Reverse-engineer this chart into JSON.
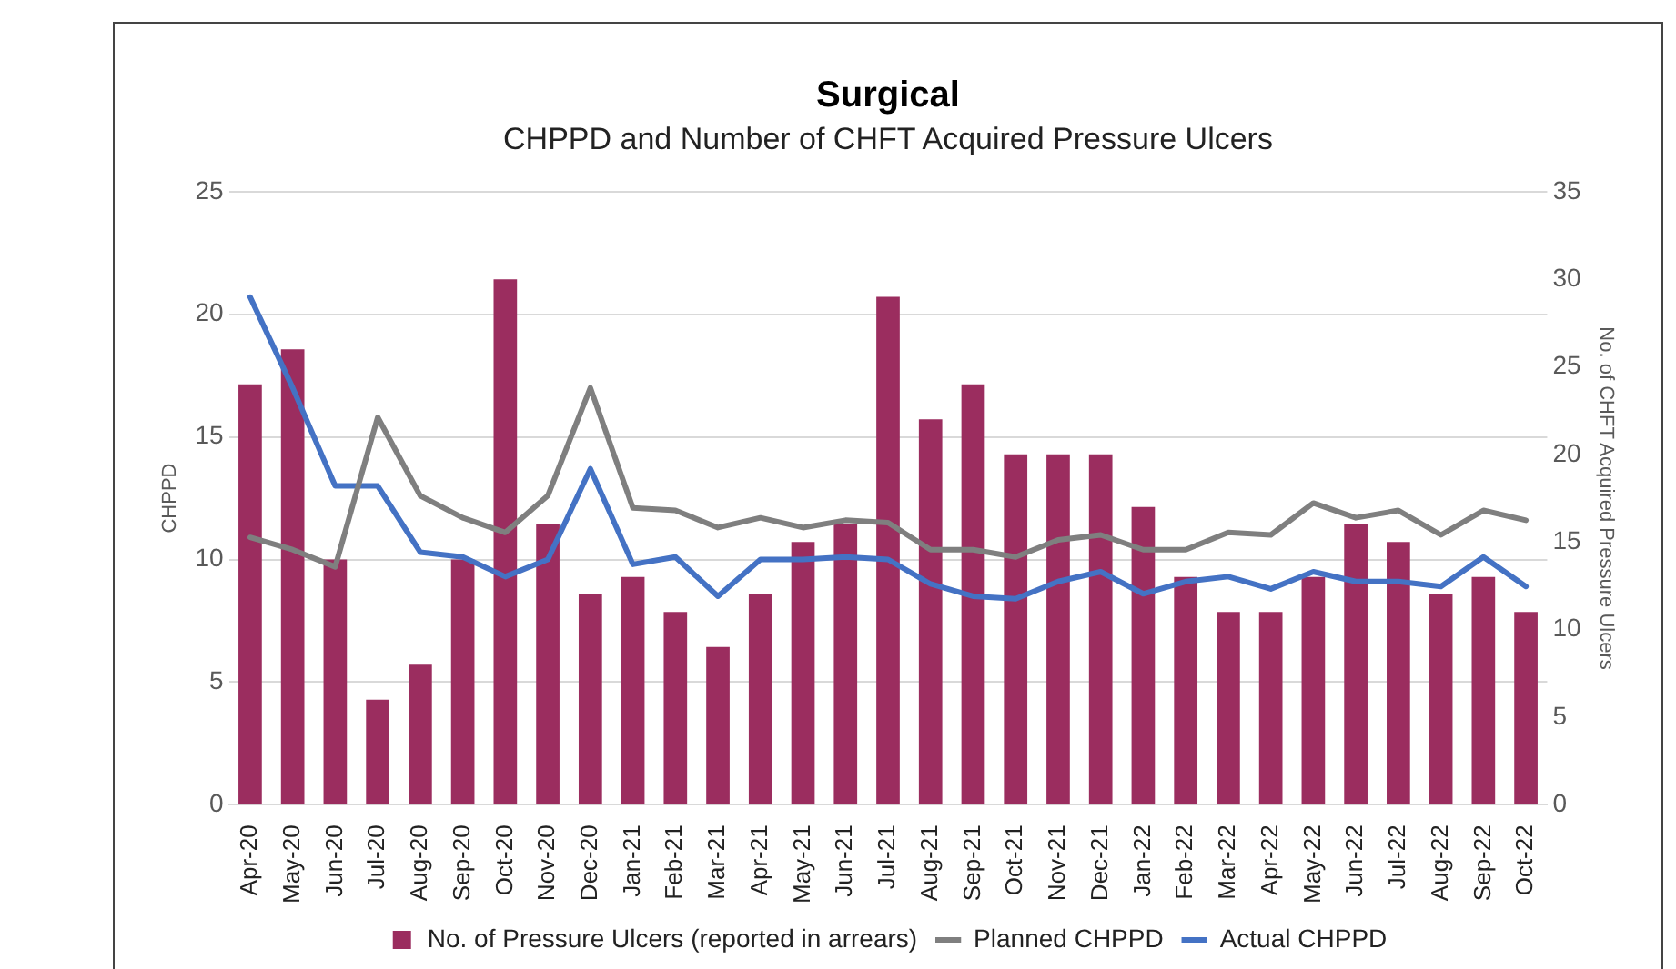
{
  "chart_data": {
    "type": "bar",
    "title": "Surgical",
    "subtitle": "CHPPD and Number of CHFT Acquired Pressure Ulcers",
    "ylabel": "CHPPD",
    "y2label": "No. of CHFT Acquired Pressure Ulcers",
    "categories": [
      "Apr-20",
      "May-20",
      "Jun-20",
      "Jul-20",
      "Aug-20",
      "Sep-20",
      "Oct-20",
      "Nov-20",
      "Dec-20",
      "Jan-21",
      "Feb-21",
      "Mar-21",
      "Apr-21",
      "May-21",
      "Jun-21",
      "Jul-21",
      "Aug-21",
      "Sep-21",
      "Oct-21",
      "Nov-21",
      "Dec-21",
      "Jan-22",
      "Feb-22",
      "Mar-22",
      "Apr-22",
      "May-22",
      "Jun-22",
      "Jul-22",
      "Aug-22",
      "Sep-22",
      "Oct-22"
    ],
    "series": [
      {
        "name": "No. of Pressure Ulcers (reported in arrears)",
        "axis": "y2",
        "color": "#9b2d5f",
        "values": [
          24,
          26,
          14,
          6,
          8,
          14,
          30,
          16,
          12,
          13,
          11,
          9,
          12,
          15,
          16,
          29,
          22,
          24,
          20,
          20,
          20,
          17,
          13,
          11,
          11,
          13,
          16,
          15,
          12,
          13,
          11
        ]
      },
      {
        "name": "Planned CHPPD",
        "type": "line",
        "color": "#7f7f7f",
        "values": [
          10.9,
          10.4,
          9.7,
          15.8,
          12.6,
          11.7,
          11.1,
          12.6,
          17.0,
          12.1,
          12.0,
          11.3,
          11.7,
          11.3,
          11.6,
          11.5,
          10.4,
          10.4,
          10.1,
          10.8,
          11.0,
          10.4,
          10.4,
          11.1,
          11.0,
          12.3,
          11.7,
          12.0,
          11.0,
          12.0,
          11.6
        ]
      },
      {
        "name": "Actual CHPPD",
        "type": "line",
        "color": "#4472c4",
        "values": [
          20.7,
          17.0,
          13.0,
          13.0,
          10.3,
          10.1,
          9.3,
          10.0,
          13.7,
          9.8,
          10.1,
          8.5,
          10.0,
          10.0,
          10.1,
          10.0,
          9.0,
          8.5,
          8.4,
          9.1,
          9.5,
          8.6,
          9.1,
          9.3,
          8.8,
          9.5,
          9.1,
          9.1,
          8.9,
          10.1,
          8.9
        ]
      }
    ],
    "ylim": [
      0,
      25
    ],
    "yticks": [
      0,
      5,
      10,
      15,
      20,
      25
    ],
    "y2lim": [
      0,
      35
    ],
    "y2ticks": [
      0,
      5,
      10,
      15,
      20,
      25,
      30,
      35
    ],
    "grid": "y",
    "legend": "bottom",
    "marker": "none",
    "line_style": "solid"
  }
}
